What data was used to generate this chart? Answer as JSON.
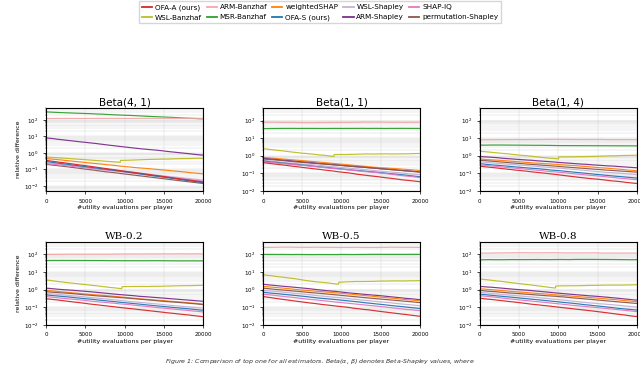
{
  "legend_entries": [
    {
      "label": "OFA-A (ours)",
      "color": "#d62728",
      "row": 0,
      "col": 0
    },
    {
      "label": "WSL-Banzhaf",
      "color": "#bcbd22",
      "row": 0,
      "col": 1
    },
    {
      "label": "ARM-Banzhaf",
      "color": "#f4a7a7",
      "row": 0,
      "col": 2
    },
    {
      "label": "MSR-Banzhaf",
      "color": "#2ca02c",
      "row": 0,
      "col": 3
    },
    {
      "label": "weightedSHAP",
      "color": "#ff7f0e",
      "row": 0,
      "col": 4
    },
    {
      "label": "OFA-S (ours)",
      "color": "#1f77b4",
      "row": 1,
      "col": 0
    },
    {
      "label": "WSL-Shapley",
      "color": "#c5b0d5",
      "row": 1,
      "col": 1
    },
    {
      "label": "ARM-Shapley",
      "color": "#7b2d8b",
      "row": 1,
      "col": 2
    },
    {
      "label": "SHAP-IQ",
      "color": "#e377c2",
      "row": 1,
      "col": 3
    },
    {
      "label": "permutation-Shapley",
      "color": "#8c564b",
      "row": 1,
      "col": 4
    }
  ],
  "subplot_titles": [
    "Beta(4, 1)",
    "Beta(1, 1)",
    "Beta(1, 4)",
    "WB-0.2",
    "WB-0.5",
    "WB-0.8"
  ],
  "ylabel": "relative difference",
  "xlabel": "#utility evaluations per player",
  "figsize": [
    6.4,
    3.67
  ],
  "dpi": 100
}
